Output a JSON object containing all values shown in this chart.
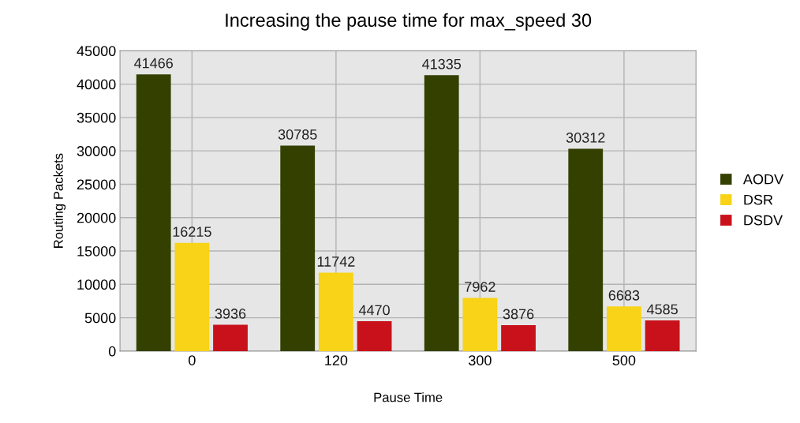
{
  "chart_data": {
    "type": "bar",
    "title": "Increasing the pause time for max_speed 30",
    "xlabel": "Pause Time",
    "ylabel": "Routing Packets",
    "categories": [
      "0",
      "120",
      "300",
      "500"
    ],
    "series": [
      {
        "name": "AODV",
        "color": "#334000",
        "values": [
          41466,
          30785,
          41335,
          30312
        ]
      },
      {
        "name": "DSR",
        "color": "#f8d317",
        "values": [
          16215,
          11742,
          7962,
          6683
        ]
      },
      {
        "name": "DSDV",
        "color": "#c9111b",
        "values": [
          3936,
          4470,
          3876,
          4585
        ]
      }
    ],
    "ylim": [
      0,
      45000
    ],
    "yticks": [
      0,
      5000,
      10000,
      15000,
      20000,
      25000,
      30000,
      35000,
      40000,
      45000
    ],
    "grid": true,
    "legend": "right",
    "data_labels": true
  }
}
